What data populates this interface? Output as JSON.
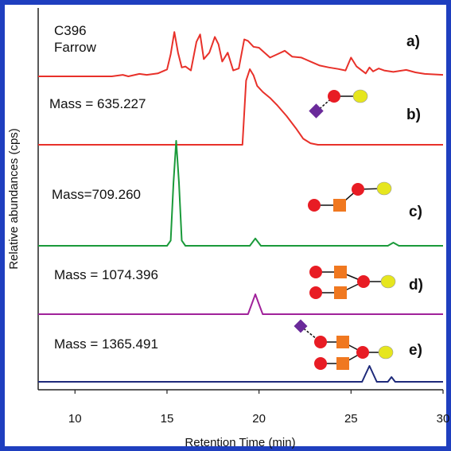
{
  "chart_data": {
    "type": "line",
    "xlabel": "Retention Time (min)",
    "ylabel": "Relative abundances (cps)",
    "xlim": [
      8,
      30
    ],
    "xticks": [
      10,
      15,
      20,
      25,
      30
    ],
    "colors": {
      "a": "#e8312a",
      "b": "#e8312a",
      "c": "#1a9a3a",
      "d": "#a0229a",
      "e": "#1e2a7a",
      "neuac": "#6a2a9a",
      "hex": "#e81c24",
      "hexnac": "#f07820",
      "gal": "#e6e61e"
    },
    "series": [
      {
        "name": "a)",
        "annotation": [
          "C396",
          "Farrow"
        ],
        "x": [
          8.0,
          12.0,
          12.6,
          12.9,
          13.5,
          13.9,
          14.5,
          15.0,
          15.2,
          15.4,
          15.6,
          15.8,
          16.0,
          16.3,
          16.6,
          16.8,
          17.0,
          17.3,
          17.6,
          17.8,
          18.0,
          18.3,
          18.6,
          18.9,
          19.2,
          19.4,
          19.7,
          20.0,
          20.3,
          20.6,
          21.0,
          21.4,
          21.8,
          22.3,
          22.8,
          23.3,
          23.8,
          24.3,
          24.7,
          25.0,
          25.3,
          25.8,
          26.0,
          26.2,
          26.5,
          26.8,
          27.3,
          28.0,
          28.5,
          29.0,
          30.0
        ],
        "values": [
          0,
          0,
          3,
          0,
          5,
          3,
          6,
          14,
          45,
          90,
          48,
          18,
          20,
          12,
          70,
          85,
          35,
          48,
          80,
          65,
          30,
          48,
          12,
          16,
          75,
          72,
          60,
          58,
          48,
          38,
          45,
          52,
          40,
          38,
          30,
          22,
          18,
          15,
          12,
          38,
          20,
          6,
          18,
          10,
          16,
          12,
          9,
          13,
          8,
          5,
          3
        ]
      },
      {
        "name": "b)",
        "annotation": [
          "Mass = 635.227"
        ],
        "x": [
          8.0,
          19.1,
          19.3,
          19.5,
          19.7,
          19.9,
          20.2,
          20.6,
          21.0,
          21.5,
          22.0,
          22.4,
          22.8,
          23.2,
          30.0
        ],
        "values": [
          0,
          0,
          85,
          100,
          92,
          78,
          70,
          62,
          52,
          38,
          22,
          8,
          2,
          0,
          0
        ]
      },
      {
        "name": "c)",
        "annotation": [
          "Mass=709.260"
        ],
        "x": [
          8.0,
          15.0,
          15.2,
          15.35,
          15.5,
          15.65,
          15.8,
          16.0,
          19.5,
          19.8,
          20.1,
          27.0,
          27.3,
          27.6,
          30.0
        ],
        "values": [
          0,
          0,
          5,
          60,
          100,
          60,
          5,
          0,
          0,
          7,
          0,
          0,
          3,
          0,
          0
        ]
      },
      {
        "name": "d)",
        "annotation": [
          "Mass = 1074.396"
        ],
        "x": [
          8.0,
          19.4,
          19.6,
          19.8,
          20.0,
          20.2,
          30.0
        ],
        "values": [
          0,
          0,
          50,
          100,
          50,
          0,
          0
        ]
      },
      {
        "name": "e)",
        "annotation": [
          "Mass = 1365.491"
        ],
        "x": [
          8.0,
          25.6,
          25.8,
          26.0,
          26.2,
          26.4,
          27.0,
          27.2,
          27.4,
          30.0
        ],
        "values": [
          0,
          0,
          50,
          100,
          50,
          0,
          0,
          30,
          0,
          0
        ]
      }
    ]
  }
}
